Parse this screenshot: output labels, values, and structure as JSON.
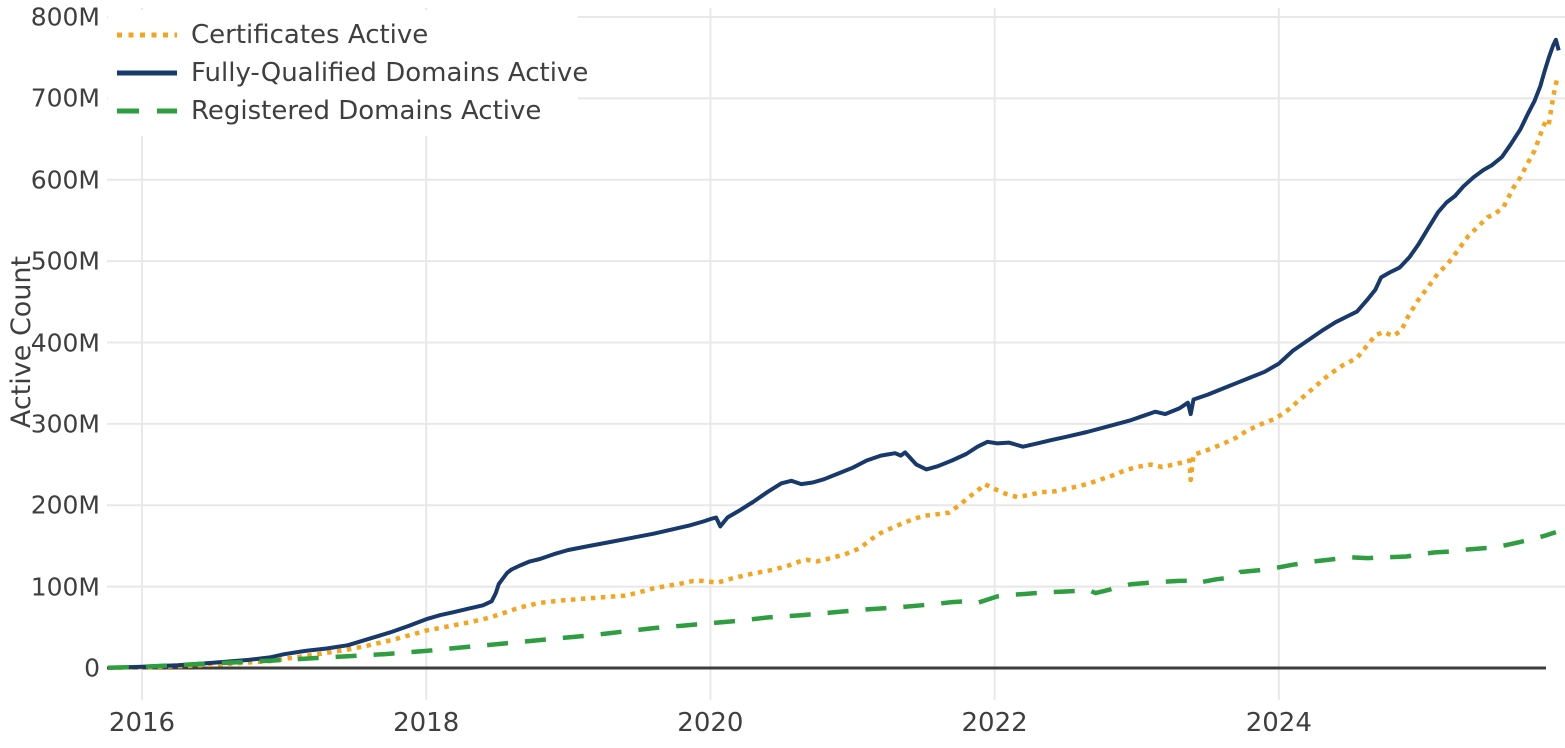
{
  "chart_data": {
    "type": "line",
    "title": "",
    "xlabel": "",
    "ylabel": "Active Count",
    "unit": "millions",
    "ylim": [
      0,
      800
    ],
    "xlim": [
      2015.75,
      2026.02
    ],
    "grid": true,
    "legend_position": "top-left",
    "background": "#ffffff",
    "grid_color": "#e8e8e8",
    "axis_line_color": "#3d3d3d",
    "text_color": "#3f3f3f",
    "y_ticks": [
      {
        "value": 0,
        "label": "0"
      },
      {
        "value": 100,
        "label": "100M"
      },
      {
        "value": 200,
        "label": "200M"
      },
      {
        "value": 300,
        "label": "300M"
      },
      {
        "value": 400,
        "label": "400M"
      },
      {
        "value": 500,
        "label": "500M"
      },
      {
        "value": 600,
        "label": "600M"
      },
      {
        "value": 700,
        "label": "700M"
      },
      {
        "value": 800,
        "label": "800M"
      }
    ],
    "x_ticks": [
      {
        "value": 2016,
        "label": "2016"
      },
      {
        "value": 2018,
        "label": "2018"
      },
      {
        "value": 2020,
        "label": "2020"
      },
      {
        "value": 2022,
        "label": "2022"
      },
      {
        "value": 2024,
        "label": "2024"
      }
    ],
    "series": [
      {
        "name": "Certificates Active",
        "color": "#F5A41E",
        "style": "dotted",
        "points": [
          [
            2015.76,
            0.2
          ],
          [
            2016.0,
            0.8
          ],
          [
            2016.3,
            2.5
          ],
          [
            2016.6,
            5
          ],
          [
            2016.9,
            8.5
          ],
          [
            2017.0,
            11
          ],
          [
            2017.2,
            16
          ],
          [
            2017.43,
            22
          ],
          [
            2017.6,
            28
          ],
          [
            2017.75,
            34
          ],
          [
            2017.9,
            41
          ],
          [
            2018.0,
            46
          ],
          [
            2018.15,
            51
          ],
          [
            2018.3,
            56
          ],
          [
            2018.45,
            62
          ],
          [
            2018.55,
            68
          ],
          [
            2018.65,
            74
          ],
          [
            2018.8,
            80
          ],
          [
            2018.95,
            83
          ],
          [
            2019.1,
            85
          ],
          [
            2019.25,
            87
          ],
          [
            2019.4,
            89
          ],
          [
            2019.5,
            93
          ],
          [
            2019.6,
            98
          ],
          [
            2019.7,
            101
          ],
          [
            2019.8,
            104
          ],
          [
            2019.88,
            107
          ],
          [
            2019.95,
            107
          ],
          [
            2020.05,
            105
          ],
          [
            2020.15,
            110
          ],
          [
            2020.3,
            116
          ],
          [
            2020.45,
            121
          ],
          [
            2020.55,
            126
          ],
          [
            2020.63,
            131
          ],
          [
            2020.68,
            133
          ],
          [
            2020.75,
            131
          ],
          [
            2020.85,
            135
          ],
          [
            2020.95,
            140
          ],
          [
            2021.05,
            147
          ],
          [
            2021.13,
            158
          ],
          [
            2021.2,
            166
          ],
          [
            2021.3,
            174
          ],
          [
            2021.4,
            181
          ],
          [
            2021.5,
            187
          ],
          [
            2021.6,
            189
          ],
          [
            2021.68,
            191
          ],
          [
            2021.75,
            200
          ],
          [
            2021.82,
            210
          ],
          [
            2021.9,
            221
          ],
          [
            2021.93,
            226
          ],
          [
            2022.0,
            220
          ],
          [
            2022.08,
            214
          ],
          [
            2022.16,
            210
          ],
          [
            2022.25,
            213
          ],
          [
            2022.33,
            216
          ],
          [
            2022.42,
            217
          ],
          [
            2022.5,
            220
          ],
          [
            2022.58,
            223
          ],
          [
            2022.65,
            226
          ],
          [
            2022.72,
            230
          ],
          [
            2022.82,
            236
          ],
          [
            2022.92,
            243
          ],
          [
            2023.0,
            247
          ],
          [
            2023.1,
            250
          ],
          [
            2023.18,
            247
          ],
          [
            2023.26,
            250
          ],
          [
            2023.33,
            253
          ],
          [
            2023.37,
            255
          ],
          [
            2023.38,
            231
          ],
          [
            2023.4,
            262
          ],
          [
            2023.5,
            268
          ],
          [
            2023.6,
            275
          ],
          [
            2023.7,
            283
          ],
          [
            2023.78,
            292
          ],
          [
            2023.88,
            300
          ],
          [
            2023.97,
            306
          ],
          [
            2024.05,
            315
          ],
          [
            2024.15,
            330
          ],
          [
            2024.25,
            345
          ],
          [
            2024.35,
            360
          ],
          [
            2024.45,
            372
          ],
          [
            2024.55,
            381
          ],
          [
            2024.62,
            396
          ],
          [
            2024.68,
            409
          ],
          [
            2024.74,
            413
          ],
          [
            2024.8,
            408
          ],
          [
            2024.86,
            414
          ],
          [
            2024.91,
            432
          ],
          [
            2024.98,
            452
          ],
          [
            2025.05,
            468
          ],
          [
            2025.12,
            485
          ],
          [
            2025.19,
            497
          ],
          [
            2025.26,
            513
          ],
          [
            2025.33,
            530
          ],
          [
            2025.4,
            542
          ],
          [
            2025.47,
            554
          ],
          [
            2025.52,
            558
          ],
          [
            2025.58,
            566
          ],
          [
            2025.65,
            590
          ],
          [
            2025.7,
            603
          ],
          [
            2025.75,
            620
          ],
          [
            2025.8,
            636
          ],
          [
            2025.83,
            650
          ],
          [
            2025.86,
            665
          ],
          [
            2025.88,
            672
          ],
          [
            2025.9,
            668
          ],
          [
            2025.92,
            690
          ],
          [
            2025.94,
            710
          ],
          [
            2025.96,
            725
          ]
        ]
      },
      {
        "name": "Fully-Qualified Domains Active",
        "color": "#17396B",
        "style": "solid",
        "points": [
          [
            2015.76,
            0.3
          ],
          [
            2016.0,
            1.5
          ],
          [
            2016.25,
            3.5
          ],
          [
            2016.5,
            6.5
          ],
          [
            2016.75,
            10
          ],
          [
            2016.9,
            13
          ],
          [
            2017.0,
            17
          ],
          [
            2017.15,
            21
          ],
          [
            2017.3,
            24
          ],
          [
            2017.45,
            28
          ],
          [
            2017.6,
            36
          ],
          [
            2017.75,
            44
          ],
          [
            2017.88,
            52
          ],
          [
            2018.0,
            60
          ],
          [
            2018.1,
            65
          ],
          [
            2018.2,
            69
          ],
          [
            2018.3,
            73
          ],
          [
            2018.4,
            77
          ],
          [
            2018.46,
            82
          ],
          [
            2018.49,
            92
          ],
          [
            2018.51,
            103
          ],
          [
            2018.54,
            110
          ],
          [
            2018.57,
            117
          ],
          [
            2018.6,
            121
          ],
          [
            2018.66,
            126
          ],
          [
            2018.73,
            131
          ],
          [
            2018.8,
            134
          ],
          [
            2018.9,
            140
          ],
          [
            2019.0,
            145
          ],
          [
            2019.15,
            150
          ],
          [
            2019.3,
            155
          ],
          [
            2019.45,
            160
          ],
          [
            2019.6,
            165
          ],
          [
            2019.75,
            171
          ],
          [
            2019.85,
            175
          ],
          [
            2019.95,
            180
          ],
          [
            2020.0,
            183
          ],
          [
            2020.04,
            185
          ],
          [
            2020.07,
            174
          ],
          [
            2020.12,
            185
          ],
          [
            2020.2,
            193
          ],
          [
            2020.3,
            204
          ],
          [
            2020.4,
            216
          ],
          [
            2020.5,
            227
          ],
          [
            2020.57,
            230
          ],
          [
            2020.64,
            226
          ],
          [
            2020.72,
            228
          ],
          [
            2020.8,
            232
          ],
          [
            2020.9,
            239
          ],
          [
            2021.0,
            246
          ],
          [
            2021.1,
            255
          ],
          [
            2021.2,
            261
          ],
          [
            2021.3,
            264
          ],
          [
            2021.34,
            261
          ],
          [
            2021.37,
            265
          ],
          [
            2021.45,
            250
          ],
          [
            2021.52,
            244
          ],
          [
            2021.6,
            248
          ],
          [
            2021.7,
            255
          ],
          [
            2021.8,
            263
          ],
          [
            2021.88,
            272
          ],
          [
            2021.95,
            278
          ],
          [
            2022.02,
            276
          ],
          [
            2022.1,
            277
          ],
          [
            2022.2,
            272
          ],
          [
            2022.3,
            276
          ],
          [
            2022.4,
            280
          ],
          [
            2022.5,
            284
          ],
          [
            2022.65,
            290
          ],
          [
            2022.8,
            297
          ],
          [
            2022.95,
            304
          ],
          [
            2023.05,
            310
          ],
          [
            2023.13,
            315
          ],
          [
            2023.2,
            312
          ],
          [
            2023.3,
            319
          ],
          [
            2023.36,
            326
          ],
          [
            2023.38,
            312
          ],
          [
            2023.4,
            330
          ],
          [
            2023.5,
            336
          ],
          [
            2023.6,
            343
          ],
          [
            2023.7,
            350
          ],
          [
            2023.8,
            357
          ],
          [
            2023.9,
            364
          ],
          [
            2024.0,
            374
          ],
          [
            2024.1,
            390
          ],
          [
            2024.2,
            402
          ],
          [
            2024.3,
            414
          ],
          [
            2024.4,
            425
          ],
          [
            2024.48,
            432
          ],
          [
            2024.55,
            438
          ],
          [
            2024.62,
            452
          ],
          [
            2024.68,
            465
          ],
          [
            2024.72,
            480
          ],
          [
            2024.78,
            486
          ],
          [
            2024.85,
            492
          ],
          [
            2024.92,
            505
          ],
          [
            2024.98,
            520
          ],
          [
            2025.05,
            540
          ],
          [
            2025.12,
            560
          ],
          [
            2025.18,
            572
          ],
          [
            2025.24,
            580
          ],
          [
            2025.3,
            592
          ],
          [
            2025.37,
            603
          ],
          [
            2025.44,
            612
          ],
          [
            2025.5,
            618
          ],
          [
            2025.57,
            628
          ],
          [
            2025.63,
            643
          ],
          [
            2025.7,
            662
          ],
          [
            2025.75,
            680
          ],
          [
            2025.8,
            697
          ],
          [
            2025.84,
            715
          ],
          [
            2025.87,
            733
          ],
          [
            2025.9,
            750
          ],
          [
            2025.93,
            765
          ],
          [
            2025.95,
            772
          ],
          [
            2025.97,
            759
          ]
        ]
      },
      {
        "name": "Registered Domains Active",
        "color": "#2E9E41",
        "style": "dashed",
        "points": [
          [
            2015.76,
            0.3
          ],
          [
            2016.0,
            1.5
          ],
          [
            2016.3,
            4
          ],
          [
            2016.6,
            6.5
          ],
          [
            2016.9,
            9
          ],
          [
            2017.2,
            12
          ],
          [
            2017.45,
            14.5
          ],
          [
            2017.7,
            17
          ],
          [
            2018.0,
            21
          ],
          [
            2018.3,
            26
          ],
          [
            2018.6,
            31
          ],
          [
            2018.9,
            36
          ],
          [
            2019.15,
            40
          ],
          [
            2019.4,
            45
          ],
          [
            2019.6,
            49
          ],
          [
            2019.8,
            52
          ],
          [
            2020.0,
            55
          ],
          [
            2020.2,
            58
          ],
          [
            2020.4,
            62
          ],
          [
            2020.65,
            65
          ],
          [
            2020.9,
            69
          ],
          [
            2021.1,
            72
          ],
          [
            2021.35,
            75
          ],
          [
            2021.55,
            78
          ],
          [
            2021.7,
            81
          ],
          [
            2021.8,
            82
          ],
          [
            2021.88,
            80
          ],
          [
            2021.95,
            84
          ],
          [
            2022.02,
            88
          ],
          [
            2022.12,
            90
          ],
          [
            2022.22,
            91
          ],
          [
            2022.35,
            93
          ],
          [
            2022.5,
            94
          ],
          [
            2022.6,
            95
          ],
          [
            2022.66,
            96
          ],
          [
            2022.71,
            92
          ],
          [
            2022.78,
            95
          ],
          [
            2022.87,
            99
          ],
          [
            2022.96,
            103
          ],
          [
            2023.1,
            105
          ],
          [
            2023.2,
            106
          ],
          [
            2023.3,
            107
          ],
          [
            2023.37,
            107
          ],
          [
            2023.41,
            104
          ],
          [
            2023.47,
            106
          ],
          [
            2023.56,
            109
          ],
          [
            2023.65,
            111
          ],
          [
            2023.69,
            113
          ],
          [
            2023.73,
            118
          ],
          [
            2023.85,
            120
          ],
          [
            2023.95,
            122
          ],
          [
            2024.1,
            127
          ],
          [
            2024.25,
            131
          ],
          [
            2024.4,
            134
          ],
          [
            2024.5,
            136
          ],
          [
            2024.62,
            135
          ],
          [
            2024.75,
            136
          ],
          [
            2024.9,
            137
          ],
          [
            2025.0,
            140
          ],
          [
            2025.1,
            142
          ],
          [
            2025.2,
            143
          ],
          [
            2025.35,
            146
          ],
          [
            2025.5,
            148
          ],
          [
            2025.6,
            151
          ],
          [
            2025.7,
            155
          ],
          [
            2025.8,
            159
          ],
          [
            2025.88,
            163
          ],
          [
            2025.95,
            167
          ]
        ]
      }
    ]
  }
}
